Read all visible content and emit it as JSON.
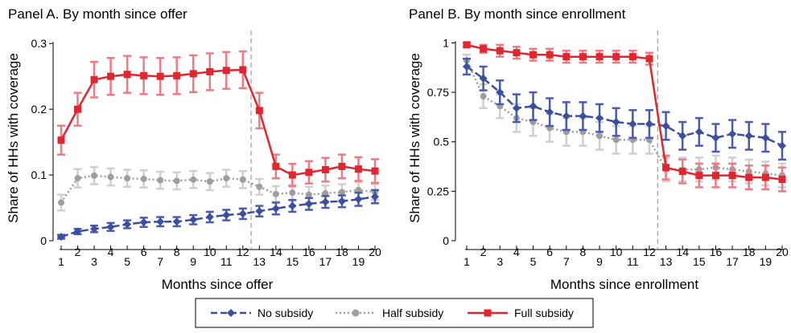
{
  "legend": {
    "entries": [
      {
        "name": "No subsidy",
        "color": "#3b4fa0",
        "marker": "diamond",
        "dash": "dashed"
      },
      {
        "name": "Half subsidy",
        "color": "#9e9e9e",
        "marker": "circle",
        "dash": "dotted"
      },
      {
        "name": "Full subsidy",
        "color": "#e0262f",
        "marker": "square",
        "dash": "solid"
      }
    ]
  },
  "chart_data": [
    {
      "type": "line",
      "title": "Panel A. By month since offer",
      "xlabel": "Months since offer",
      "ylabel": "Share of HHs with coverage",
      "ylim": [
        0,
        0.31
      ],
      "yticks": [
        0,
        0.1,
        0.2,
        0.3
      ],
      "ytick_labels": [
        "0",
        "0.1",
        "0.2",
        "0.3"
      ],
      "x": [
        1,
        2,
        3,
        4,
        5,
        6,
        7,
        8,
        9,
        10,
        11,
        12,
        13,
        14,
        15,
        16,
        17,
        18,
        19,
        20
      ],
      "xtick_labels": [
        "1",
        "2",
        "3",
        "4",
        "5",
        "6",
        "7",
        "8",
        "9",
        "10",
        "11",
        "12",
        "13",
        "14",
        "15",
        "16",
        "17",
        "18",
        "19",
        "20"
      ],
      "vline": 12.5,
      "grid": false,
      "series": [
        {
          "name": "No subsidy",
          "values": [
            0.006,
            0.014,
            0.018,
            0.021,
            0.025,
            0.028,
            0.029,
            0.029,
            0.032,
            0.036,
            0.039,
            0.041,
            0.045,
            0.049,
            0.053,
            0.056,
            0.059,
            0.06,
            0.063,
            0.067
          ],
          "err": [
            0.003,
            0.004,
            0.005,
            0.006,
            0.006,
            0.007,
            0.007,
            0.007,
            0.007,
            0.008,
            0.008,
            0.008,
            0.008,
            0.009,
            0.009,
            0.009,
            0.009,
            0.009,
            0.01,
            0.01
          ]
        },
        {
          "name": "Half subsidy",
          "values": [
            0.058,
            0.095,
            0.099,
            0.097,
            0.095,
            0.094,
            0.092,
            0.091,
            0.093,
            0.09,
            0.095,
            0.093,
            0.082,
            0.071,
            0.073,
            0.07,
            0.072,
            0.074,
            0.077,
            0.074
          ],
          "err": [
            0.012,
            0.014,
            0.013,
            0.013,
            0.013,
            0.013,
            0.013,
            0.013,
            0.013,
            0.013,
            0.013,
            0.013,
            0.012,
            0.012,
            0.012,
            0.012,
            0.012,
            0.012,
            0.012,
            0.012
          ]
        },
        {
          "name": "Full subsidy",
          "values": [
            0.153,
            0.2,
            0.245,
            0.25,
            0.253,
            0.251,
            0.25,
            0.251,
            0.254,
            0.257,
            0.259,
            0.26,
            0.198,
            0.113,
            0.1,
            0.104,
            0.108,
            0.113,
            0.109,
            0.106
          ],
          "err": [
            0.022,
            0.025,
            0.027,
            0.028,
            0.028,
            0.028,
            0.028,
            0.028,
            0.028,
            0.028,
            0.028,
            0.028,
            0.027,
            0.018,
            0.017,
            0.017,
            0.018,
            0.018,
            0.018,
            0.018
          ]
        }
      ]
    },
    {
      "type": "line",
      "title": "Panel B. By month since enrollment",
      "xlabel": "Months since enrollment",
      "ylabel": "Share of HHs with coverage",
      "ylim": [
        0,
        1.03
      ],
      "yticks": [
        0,
        0.25,
        0.5,
        0.75,
        1
      ],
      "ytick_labels": [
        "0",
        "0.25",
        "0.5",
        "0.75",
        "1"
      ],
      "x": [
        1,
        2,
        3,
        4,
        5,
        6,
        7,
        8,
        9,
        10,
        11,
        12,
        13,
        14,
        15,
        16,
        17,
        18,
        19,
        20
      ],
      "xtick_labels": [
        "1",
        "2",
        "3",
        "4",
        "5",
        "6",
        "7",
        "8",
        "9",
        "10",
        "11",
        "12",
        "13",
        "14",
        "15",
        "16",
        "17",
        "18",
        "19",
        "20"
      ],
      "vline": 12.5,
      "grid": false,
      "series": [
        {
          "name": "No subsidy",
          "values": [
            0.88,
            0.82,
            0.75,
            0.67,
            0.68,
            0.65,
            0.63,
            0.63,
            0.62,
            0.6,
            0.59,
            0.59,
            0.58,
            0.53,
            0.55,
            0.52,
            0.54,
            0.53,
            0.52,
            0.48
          ],
          "err": [
            0.04,
            0.06,
            0.06,
            0.07,
            0.07,
            0.07,
            0.07,
            0.07,
            0.07,
            0.07,
            0.07,
            0.07,
            0.07,
            0.07,
            0.07,
            0.07,
            0.07,
            0.07,
            0.07,
            0.07
          ]
        },
        {
          "name": "Half subsidy",
          "values": [
            0.91,
            0.73,
            0.68,
            0.62,
            0.6,
            0.57,
            0.55,
            0.55,
            0.53,
            0.51,
            0.51,
            0.51,
            0.36,
            0.36,
            0.36,
            0.37,
            0.36,
            0.35,
            0.34,
            0.33
          ],
          "err": [
            0.03,
            0.06,
            0.06,
            0.07,
            0.07,
            0.07,
            0.07,
            0.07,
            0.07,
            0.07,
            0.07,
            0.07,
            0.06,
            0.06,
            0.06,
            0.06,
            0.06,
            0.06,
            0.06,
            0.06
          ]
        },
        {
          "name": "Full subsidy",
          "values": [
            0.99,
            0.97,
            0.96,
            0.95,
            0.94,
            0.94,
            0.93,
            0.93,
            0.93,
            0.93,
            0.93,
            0.92,
            0.37,
            0.35,
            0.33,
            0.33,
            0.33,
            0.32,
            0.32,
            0.31
          ],
          "err": [
            0.01,
            0.02,
            0.03,
            0.03,
            0.03,
            0.03,
            0.03,
            0.03,
            0.03,
            0.03,
            0.03,
            0.03,
            0.06,
            0.06,
            0.06,
            0.06,
            0.06,
            0.06,
            0.06,
            0.06
          ]
        }
      ]
    }
  ]
}
